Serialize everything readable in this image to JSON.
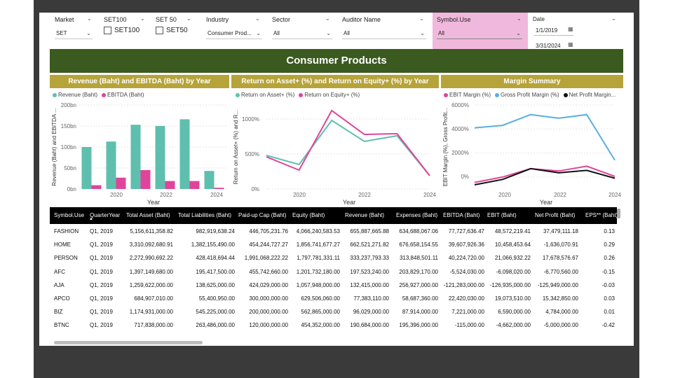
{
  "filters": {
    "market": {
      "label": "Market",
      "value": "SET"
    },
    "set100": {
      "label": "SET100",
      "option": "SET100"
    },
    "set50": {
      "label": "SET 50",
      "option": "SET50"
    },
    "industry": {
      "label": "Industry",
      "value": "Consumer Prod..."
    },
    "sector": {
      "label": "Sector",
      "value": "All"
    },
    "auditor": {
      "label": "Auditor Name",
      "value": "All"
    },
    "symbol_use": {
      "label": "Symbol.Use",
      "value": "All"
    },
    "date": {
      "label": "Date",
      "start": "1/1/2019",
      "end": "3/31/2024"
    }
  },
  "banner": {
    "title": "Consumer Products"
  },
  "charts": {
    "revenue": {
      "title": "Revenue (Baht) and EBITDA (Baht) by Year",
      "legend": [
        "Revenue (Baht)",
        "EBITDA (Baht)"
      ],
      "ylabel": "Revenue (Baht) and EBITDA ...",
      "xlabel": "Year",
      "yticks": [
        "200bn",
        "150bn",
        "100bn",
        "50bn",
        "0bn"
      ],
      "xticks": [
        "2020",
        "2022",
        "2024"
      ]
    },
    "returns": {
      "title": "Return on Asset+ (%) and Return on Equity+ (%) by Year",
      "legend": [
        "Return on Asset+ (%)",
        "Return on Equity+ (%)"
      ],
      "ylabel": "Return on Asset+ (%) and R...",
      "xlabel": "Year",
      "yticks": [
        "1000%",
        "500%",
        "0%"
      ],
      "xticks": [
        "2020",
        "2022",
        "2024"
      ]
    },
    "margin": {
      "title": "Margin Summary",
      "legend": [
        "EBIT Margin (%)",
        "Gross Profit Margin (%)",
        "Net Profit Margin..."
      ],
      "ylabel": "EBIT Margin (%), Gross Profit...",
      "xlabel": "Year",
      "yticks": [
        "6000%",
        "4000%",
        "2000%",
        "0%"
      ],
      "xticks": [
        "2020",
        "2022",
        "2024"
      ]
    }
  },
  "colors": {
    "teal": "#5fbfae",
    "pink": "#e0449a",
    "blue": "#5aaee0",
    "black": "#111111",
    "banner": "#3b5a1f",
    "gold": "#b6a43a",
    "pinkFilter": "#f0b8dc"
  },
  "chart_data": [
    {
      "type": "bar",
      "categories": [
        "2019",
        "2020",
        "2021",
        "2022",
        "2023",
        "2024"
      ],
      "series": [
        {
          "name": "Revenue (Baht)",
          "values": [
            100,
            113,
            153,
            150,
            166,
            43
          ]
        },
        {
          "name": "EBITDA (Baht)",
          "values": [
            9,
            27,
            45,
            19,
            19,
            3
          ]
        }
      ],
      "ylim": [
        0,
        200
      ]
    },
    {
      "type": "line",
      "categories": [
        "2019",
        "2020",
        "2021",
        "2022",
        "2023",
        "2024"
      ],
      "series": [
        {
          "name": "Return on Asset+ (%)",
          "values": [
            480,
            350,
            980,
            680,
            760,
            190
          ]
        },
        {
          "name": "Return on Equity+ (%)",
          "values": [
            460,
            270,
            1120,
            780,
            790,
            190
          ]
        }
      ],
      "ylim": [
        0,
        1200
      ]
    },
    {
      "type": "line",
      "categories": [
        "2019",
        "2020",
        "2021",
        "2022",
        "2023",
        "2024"
      ],
      "series": [
        {
          "name": "EBIT Margin (%)",
          "values": [
            -450,
            0,
            700,
            500,
            900,
            50
          ]
        },
        {
          "name": "Gross Profit Margin (%)",
          "values": [
            4100,
            4300,
            5200,
            4900,
            5200,
            1400
          ]
        },
        {
          "name": "Net Profit Margin...",
          "values": [
            -650,
            -200,
            700,
            350,
            550,
            -100
          ]
        }
      ],
      "ylim": [
        -1000,
        6000
      ]
    }
  ],
  "table": {
    "headers": [
      "Symbol.Use",
      "QuarterYear",
      "Total Asset (Baht)",
      "Total Liabilities (Baht)",
      "Paid-up Cap (Baht)",
      "Equity (Baht)",
      "Revenue (Baht)",
      "Expenses (Baht)",
      "EBITDA (Baht)",
      "EBIT (Baht)",
      "Net Profit (Baht)",
      "EPS** (Baht)"
    ],
    "rows": [
      [
        "FASHION",
        "Q1, 2019",
        "5,156,611,358.82",
        "982,919,638.24",
        "446,705,231.76",
        "4,066,240,583.53",
        "655,887,665.88",
        "634,688,067.06",
        "77,727,636.47",
        "48,572,219.41",
        "37,479,111.18",
        "0.13"
      ],
      [
        "HOME",
        "Q1, 2019",
        "3,310,092,680.91",
        "1,382,155,490.00",
        "454,244,727.27",
        "1,856,741,677.27",
        "662,521,271.82",
        "676,658,154.55",
        "39,607,926.36",
        "10,458,453.64",
        "-1,636,070.91",
        "0.29"
      ],
      [
        "PERSON",
        "Q1, 2019",
        "2,272,990,692.22",
        "428,418,694.44",
        "1,991,068,222.22",
        "1,797,781,331.11",
        "333,237,793.33",
        "313,848,501.11",
        "40,224,720.00",
        "21,066,932.22",
        "17,678,576.67",
        "0.26"
      ],
      [
        "AFC",
        "Q1, 2019",
        "1,397,149,680.00",
        "195,417,500.00",
        "455,742,660.00",
        "1,201,732,180.00",
        "197,523,240.00",
        "203,829,170.00",
        "-5,524,030.00",
        "-6,098,020.00",
        "-6,770,560.00",
        "-0.15"
      ],
      [
        "AJA",
        "Q1, 2019",
        "1,259,622,000.00",
        "138,625,000.00",
        "424,029,000.00",
        "1,057,948,000.00",
        "132,415,000.00",
        "256,927,000.00",
        "-121,283,000.00",
        "-126,935,000.00",
        "-125,949,000.00",
        "-0.03"
      ],
      [
        "APCO",
        "Q1, 2019",
        "684,907,010.00",
        "55,400,950.00",
        "300,000,000.00",
        "629,506,060.00",
        "77,383,110.00",
        "58,687,360.00",
        "22,420,030.00",
        "19,073,510.00",
        "15,342,850.00",
        "0.03"
      ],
      [
        "BIZ",
        "Q1, 2019",
        "1,174,931,000.00",
        "545,225,000.00",
        "200,000,000.00",
        "562,865,000.00",
        "96,029,000.00",
        "87,914,000.00",
        "7,221,000.00",
        "6,590,000.00",
        "4,784,000.00",
        "0.01"
      ],
      [
        "BTNC",
        "Q1, 2019",
        "717,838,000.00",
        "263,486,000.00",
        "120,000,000.00",
        "454,352,000.00",
        "190,684,000.00",
        "195,396,000.00",
        "-115,000.00",
        "-4,662,000.00",
        "-5,000,000.00",
        "-0.42"
      ]
    ]
  }
}
